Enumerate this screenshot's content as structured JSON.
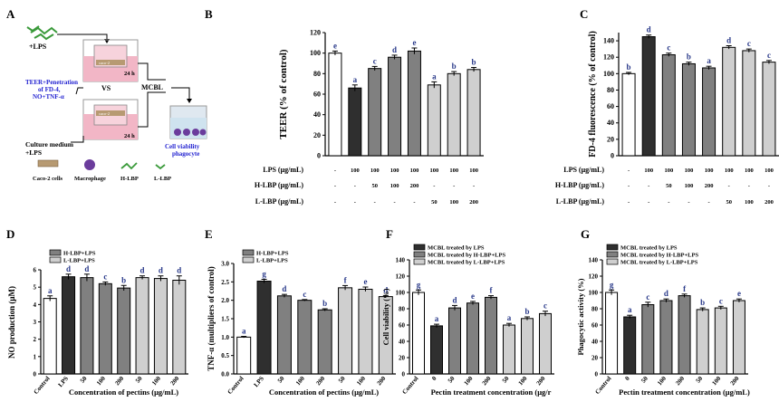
{
  "schematic": {
    "label": "A",
    "lps": "+LPS",
    "teer_line1": "TEER+Penetration",
    "teer_line2": "of FD-4,",
    "teer_line3": "NO+TNF-α",
    "vs": "VS",
    "h24_top": "24 h",
    "h24_bottom": "24 h",
    "mcbl": "MCBL",
    "culture1": "Culture medium",
    "culture2": "+LPS",
    "viability1": "Cell viability",
    "viability2": "phagocyte",
    "caco2": "Caco-2 cells",
    "macrophage": "Macrophage",
    "hlbp": "H-LBP",
    "llbp": "L-LBP",
    "caco_text": "caco-2"
  },
  "colors": {
    "control": "#ffffff",
    "lps": "#2f2f2f",
    "h_lbp": "#808080",
    "l_lbp": "#cfcfcf",
    "blue_text": "#1f1fd0",
    "letter_blue": "#2a3a8a"
  },
  "treatment_table": {
    "lps_label": "LPS (μg/mL)",
    "h_label": "H-LBP (μg/mL)",
    "l_label": "L-LBP (μg/mL)",
    "lps_row": [
      "-",
      "100",
      "100",
      "100",
      "100",
      "100",
      "100",
      "100"
    ],
    "h_row": [
      "-",
      "-",
      "50",
      "100",
      "200",
      "-",
      "-",
      "-"
    ],
    "l_row": [
      "-",
      "-",
      "-",
      "-",
      "-",
      "50",
      "100",
      "200"
    ]
  },
  "chart_data": [
    {
      "panel": "B",
      "type": "bar",
      "ylabel": "TEER (% of control)",
      "ylim": [
        0,
        120
      ],
      "yticks": [
        0,
        20,
        40,
        60,
        80,
        100,
        120
      ],
      "values": [
        100,
        66,
        85,
        96,
        102,
        69,
        80,
        84
      ],
      "errors": [
        2,
        3,
        2,
        2,
        3,
        3,
        2,
        2
      ],
      "letters": [
        "e",
        "a",
        "c",
        "d",
        "e",
        "a",
        "b",
        "b"
      ],
      "groups": [
        "control",
        "lps",
        "h_lbp",
        "h_lbp",
        "h_lbp",
        "l_lbp",
        "l_lbp",
        "l_lbp"
      ]
    },
    {
      "panel": "C",
      "type": "bar",
      "ylabel": "FD-4 fluorescence (% of control)",
      "ylim": [
        0,
        150
      ],
      "yticks": [
        0,
        20,
        40,
        60,
        80,
        100,
        120,
        140
      ],
      "values": [
        100,
        145,
        123,
        112,
        107,
        132,
        128,
        114
      ],
      "errors": [
        1.5,
        2,
        2,
        2,
        2,
        2,
        2,
        2
      ],
      "letters": [
        "b",
        "d",
        "c",
        "b",
        "a",
        "d",
        "c",
        "c"
      ],
      "groups": [
        "control",
        "lps",
        "h_lbp",
        "h_lbp",
        "h_lbp",
        "l_lbp",
        "l_lbp",
        "l_lbp"
      ]
    },
    {
      "panel": "D",
      "type": "bar",
      "ylabel": "NO production (μM)",
      "xlabel": "Concentration of pectins (μg/mL)",
      "ylim": [
        0,
        6
      ],
      "yticks": [
        0,
        1,
        2,
        3,
        4,
        5,
        6
      ],
      "categories": [
        "Control",
        "LPS",
        "50",
        "100",
        "200",
        "50",
        "100",
        "200"
      ],
      "values": [
        4.35,
        5.6,
        5.55,
        5.2,
        4.95,
        5.55,
        5.5,
        5.4
      ],
      "errors": [
        0.15,
        0.15,
        0.2,
        0.1,
        0.15,
        0.1,
        0.15,
        0.25
      ],
      "letters": [
        "a",
        "d",
        "d",
        "c",
        "b",
        "d",
        "d",
        "d"
      ],
      "groups": [
        "control",
        "lps",
        "h_lbp",
        "h_lbp",
        "h_lbp",
        "l_lbp",
        "l_lbp",
        "l_lbp"
      ],
      "legend": [
        "H-LBP+LPS",
        "L-LBP+LPS"
      ]
    },
    {
      "panel": "E",
      "type": "bar",
      "ylabel": "TNF-α (multipliers of control)",
      "xlabel": "Concentration of pectins (μg/mL)",
      "ylim": [
        0,
        3.0
      ],
      "yticks": [
        0.0,
        0.5,
        1.0,
        1.5,
        2.0,
        2.5,
        3.0
      ],
      "categories": [
        "Control",
        "LPS",
        "50",
        "100",
        "200",
        "50",
        "100",
        "200"
      ],
      "values": [
        1.0,
        2.52,
        2.12,
        2.0,
        1.74,
        2.34,
        2.3,
        2.1
      ],
      "errors": [
        0.02,
        0.05,
        0.04,
        0.02,
        0.03,
        0.06,
        0.06,
        0.03
      ],
      "letters": [
        "a",
        "g",
        "d",
        "c",
        "b",
        "f",
        "e",
        "d"
      ],
      "groups": [
        "control",
        "lps",
        "h_lbp",
        "h_lbp",
        "h_lbp",
        "l_lbp",
        "l_lbp",
        "l_lbp"
      ],
      "legend": [
        "H-LBP+LPS",
        "L-LBP+LPS"
      ]
    },
    {
      "panel": "F",
      "type": "bar",
      "ylabel": "Cell viability (%)",
      "xlabel": "Pectin treatment concentration (μg/r",
      "ylim": [
        0,
        140
      ],
      "yticks": [
        0,
        20,
        40,
        60,
        80,
        100,
        120,
        140
      ],
      "categories": [
        "Control",
        "0",
        "50",
        "100",
        "200",
        "50",
        "100",
        "200"
      ],
      "values": [
        100,
        59,
        81,
        87,
        94,
        60,
        68,
        74
      ],
      "errors": [
        3,
        2,
        3,
        2,
        2,
        2,
        2,
        3
      ],
      "letters": [
        "g",
        "a",
        "d",
        "e",
        "f",
        "a",
        "b",
        "c"
      ],
      "groups": [
        "control",
        "lps",
        "h_lbp",
        "h_lbp",
        "h_lbp",
        "l_lbp",
        "l_lbp",
        "l_lbp"
      ],
      "legend": [
        "MCBL treated by LPS",
        "MCBL treated by H-LBP+LPS",
        "MCBL treated by L-LBP+LPS"
      ]
    },
    {
      "panel": "G",
      "type": "bar",
      "ylabel": "Phagocytic activity (%)",
      "xlabel": "Pectin treatment concentration (μg/mL)",
      "ylim": [
        0,
        140
      ],
      "yticks": [
        0,
        20,
        40,
        60,
        80,
        100,
        120,
        140
      ],
      "categories": [
        "Control",
        "0",
        "50",
        "100",
        "200",
        "50",
        "100",
        "200"
      ],
      "values": [
        100,
        70,
        85,
        90,
        96,
        79,
        81,
        90
      ],
      "errors": [
        3,
        2,
        3,
        2,
        2,
        2,
        2,
        2
      ],
      "letters": [
        "g",
        "a",
        "c",
        "d",
        "f",
        "b",
        "c",
        "e"
      ],
      "groups": [
        "control",
        "lps",
        "h_lbp",
        "h_lbp",
        "h_lbp",
        "l_lbp",
        "l_lbp",
        "l_lbp"
      ],
      "legend": [
        "MCBL treated by LPS",
        "MCBL treated by H-LBP+LPS",
        "MCBL treated by L-LBP+LPS"
      ]
    }
  ]
}
